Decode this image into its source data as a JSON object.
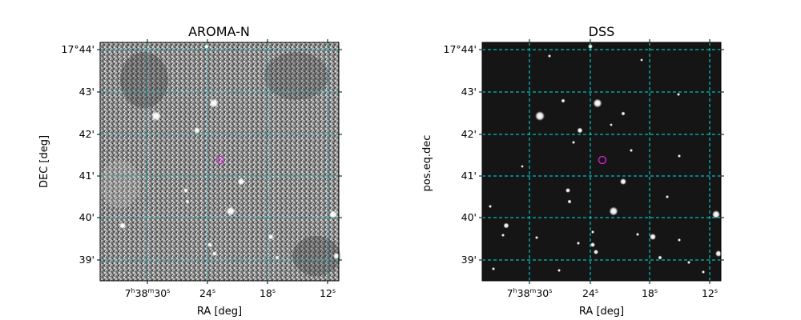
{
  "panels": [
    {
      "title": "AROMA-N",
      "xlabel": "RA [deg]",
      "ylabel": "DEC [deg]",
      "ra_ticks": [
        {
          "h": "7",
          "m": "38",
          "s": "30",
          "full": true
        },
        {
          "s": "24"
        },
        {
          "s": "18"
        },
        {
          "s": "12"
        }
      ],
      "dec_ticks": [
        "17°44'",
        "43'",
        "42'",
        "41'",
        "40'",
        "39'"
      ],
      "image_style": "noisy",
      "grid_color": "#20b0b0",
      "marker_color": "#e020e0"
    },
    {
      "title": "DSS",
      "xlabel": "RA [deg]",
      "ylabel": "pos.eq.dec",
      "ra_ticks": [
        {
          "h": "7",
          "m": "38",
          "s": "30",
          "full": true
        },
        {
          "s": "24"
        },
        {
          "s": "18"
        },
        {
          "s": "12"
        }
      ],
      "dec_ticks": [
        "17°44'",
        "43'",
        "42'",
        "41'",
        "40'",
        "39'"
      ],
      "image_style": "dark",
      "grid_color": "#00e5e5",
      "marker_color": "#e020e0"
    }
  ]
}
